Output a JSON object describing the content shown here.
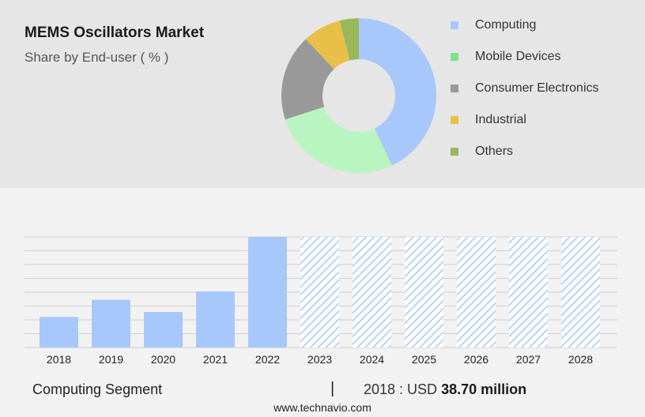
{
  "header": {
    "title": "MEMS Oscillators Market",
    "subtitle": "Share by End-user ( % )"
  },
  "legend": [
    {
      "label": "Computing",
      "color": "#a8c8fc"
    },
    {
      "label": "Mobile Devices",
      "color": "#7de08f"
    },
    {
      "label": "Consumer Electronics",
      "color": "#999999"
    },
    {
      "label": "Industrial",
      "color": "#e8c048"
    },
    {
      "label": "Others",
      "color": "#9ab85a"
    }
  ],
  "chart_data": [
    {
      "type": "pie",
      "donut": true,
      "categories": [
        "Computing",
        "Mobile Devices",
        "Consumer Electronics",
        "Industrial",
        "Others"
      ],
      "values": [
        43,
        27,
        18,
        8,
        4
      ],
      "colors": [
        "#a8c8fc",
        "#b9f5c0",
        "#999999",
        "#e8c048",
        "#9ab85a"
      ]
    },
    {
      "type": "bar",
      "categories": [
        "2018",
        "2019",
        "2020",
        "2021",
        "2022",
        "2023",
        "2024",
        "2025",
        "2026",
        "2027",
        "2028"
      ],
      "values": [
        38.7,
        60.5,
        45.0,
        71.0,
        140.0,
        140.0,
        140.0,
        140.0,
        140.0,
        140.0,
        140.0
      ],
      "forecast_start_index": 5,
      "ylim": [
        0,
        140
      ],
      "grid": true,
      "bar_color": "#a8c8fc"
    }
  ],
  "footer": {
    "segment_label": "Computing Segment",
    "separator": "|",
    "value_prefix": "2018 : USD",
    "value": "38.70 million",
    "source": "www.technavio.com"
  }
}
